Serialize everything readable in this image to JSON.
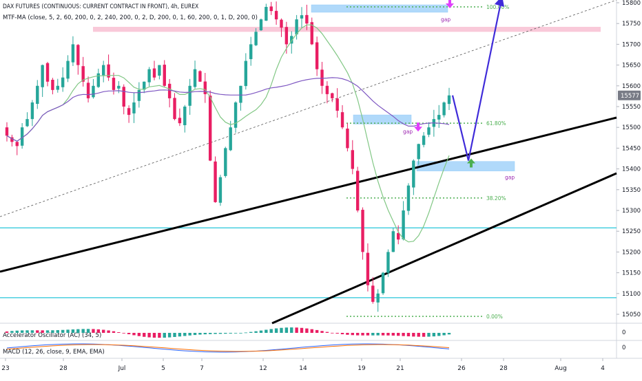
{
  "header": {
    "symbol_line": "DAX FUTURES (CONTINUOUS: CURRENT CONTRACT IN FRONT), 4h, EUREX",
    "indicator_line": "MTF-MA (close, 5, 2, 60, 200, 0, 2, 240, 200, 0, 2, D, 200, 0, 1, 60, 200, 0, 1, D, 200, 0)"
  },
  "price_scale": {
    "labels": [
      "15800",
      "15750",
      "15700",
      "15650",
      "15600",
      "15550",
      "15500",
      "15450",
      "15400",
      "15350",
      "15300",
      "15250",
      "15200",
      "15150",
      "15100",
      "15050"
    ],
    "current_price": "15577",
    "current_price_color": "#787b86"
  },
  "time_axis": {
    "labels": [
      "23",
      "28",
      "Jul",
      "5",
      "7",
      "12",
      "14",
      "19",
      "21",
      "26",
      "28",
      "Aug",
      "4"
    ]
  },
  "annotations": {
    "fib_100": "100.00%",
    "fib_618": "61.80%",
    "fib_382": "38.20%",
    "fib_000": "0.00%",
    "gap_top": "gap",
    "gap_mid": "gap",
    "gap_low": "gap"
  },
  "ac_panel": {
    "title": "Accelerator Oscillator (AC) (34, 5)",
    "scale_label": "0"
  },
  "macd_panel": {
    "title": "MACD (12, 26, close, 9, EMA, EMA)",
    "scale_label": "0"
  },
  "colors": {
    "bull": "#26a69a",
    "bear": "#e91e63",
    "ma_green": "#81c784",
    "ma_purple": "#7e57c2",
    "fib": "#4caf50",
    "hline": "#26c6da",
    "zone_blue": "#90caf9",
    "zone_pink": "#f8bbd0",
    "projection": "#3f2bd9",
    "arrow_up": "#4caf50",
    "arrow_down": "#e040fb"
  },
  "chart_data": {
    "type": "candlestick",
    "interval": "4h",
    "x_labels": [
      "23",
      "28",
      "Jul",
      "5",
      "7",
      "12",
      "14",
      "19",
      "21",
      "26",
      "28",
      "Aug",
      "4"
    ],
    "y_range": [
      15030,
      15810
    ],
    "close_path": [
      15480,
      15465,
      15455,
      15500,
      15520,
      15560,
      15600,
      15650,
      15610,
      15590,
      15600,
      15620,
      15660,
      15700,
      15650,
      15610,
      15570,
      15600,
      15630,
      15650,
      15620,
      15590,
      15600,
      15550,
      15530,
      15560,
      15590,
      15610,
      15640,
      15620,
      15650,
      15600,
      15570,
      15520,
      15510,
      15550,
      15600,
      15640,
      15610,
      15580,
      15420,
      15320,
      15380,
      15450,
      15500,
      15560,
      15600,
      15660,
      15700,
      15730,
      15760,
      15790,
      15780,
      15760,
      15740,
      15700,
      15720,
      15760,
      15770,
      15750,
      15700,
      15640,
      15600,
      15580,
      15570,
      15540,
      15500,
      15450,
      15400,
      15300,
      15200,
      15120,
      15080,
      15100,
      15150,
      15200,
      15250,
      15230,
      15300,
      15360,
      15420,
      15460,
      15480,
      15500,
      15520,
      15530,
      15560,
      15577
    ],
    "key_levels": {
      "fib_100": 15790,
      "fib_618": 15510,
      "fib_382": 15330,
      "fib_000": 15045,
      "horizontal_1": 15258,
      "horizontal_2": 15090
    },
    "projection": [
      15577,
      15420,
      15800
    ]
  }
}
